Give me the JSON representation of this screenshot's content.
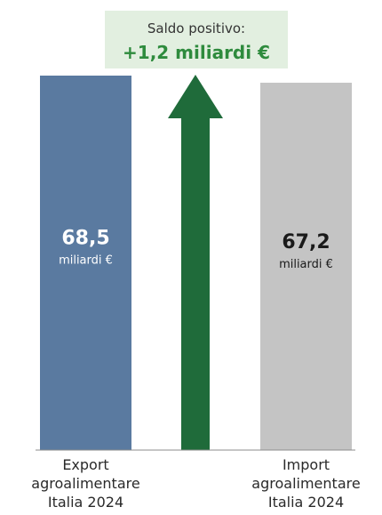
{
  "chart_data": {
    "type": "bar",
    "title": "",
    "xlabel": "",
    "ylabel": "",
    "categories": [
      "Export agroalimentare Italia 2024",
      "Import agroalimentare Italia 2024"
    ],
    "category_lines": [
      [
        "Export",
        "agroalimentare",
        "Italia 2024"
      ],
      [
        "Import",
        "agroalimentare",
        "Italia 2024"
      ]
    ],
    "values": [
      68.5,
      67.2
    ],
    "value_labels": [
      "68,5",
      "67,2"
    ],
    "unit_label": "miliardi €",
    "ylim": [
      0,
      68.5
    ],
    "bar_colors": [
      "#5a7aa0",
      "#c4c4c4"
    ],
    "value_text_colors": [
      "#ffffff",
      "#1a1a1a"
    ],
    "annotation": {
      "title": "Saldo positivo:",
      "value": "+1,2 miliardi €",
      "box_color": "#e2efe0",
      "value_color": "#2e8b3d",
      "arrow_color": "#1f6b3a",
      "direction": "up"
    },
    "grid": false,
    "legend": "none"
  }
}
